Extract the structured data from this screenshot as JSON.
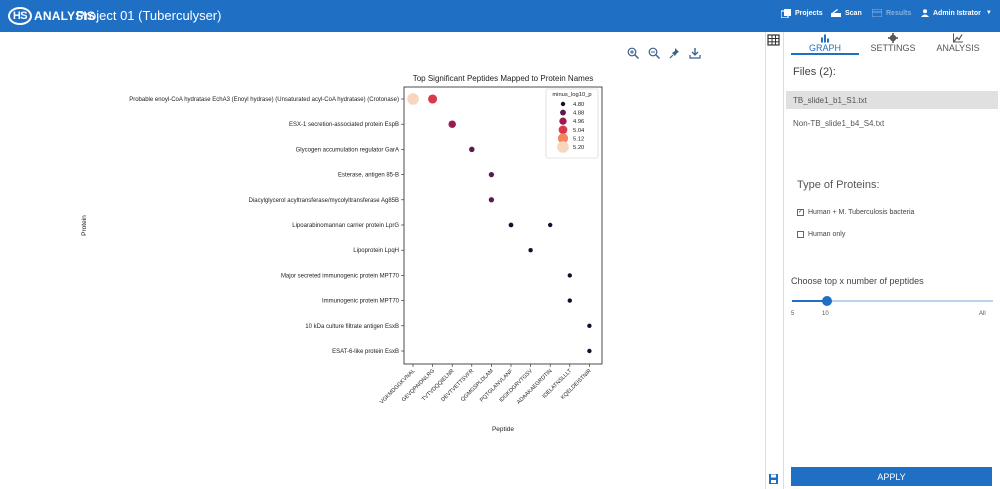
{
  "header": {
    "logo_hs": "HS",
    "logo_text": "ANALYSIS",
    "project_title": "Project 01 (Tuberculyser)",
    "nav": [
      {
        "label": "Projects",
        "icon": "projects-icon"
      },
      {
        "label": "Scan",
        "icon": "scan-icon"
      },
      {
        "label": "Results",
        "icon": "results-icon"
      },
      {
        "label": "Admin Istrator",
        "icon": "user-icon"
      }
    ],
    "accent_color": "#1f6fc4"
  },
  "right_panel": {
    "tabs": [
      {
        "label": "GRAPH",
        "icon": "bar-chart-icon",
        "active": true
      },
      {
        "label": "SETTINGS",
        "icon": "gear-icon",
        "active": false
      },
      {
        "label": "ANALYSIS",
        "icon": "line-chart-icon",
        "active": false
      }
    ],
    "files_title": "Files (2):",
    "files": [
      {
        "name": "TB_slide1_b1_S1.txt",
        "selected": true
      },
      {
        "name": "Non-TB_slide1_b4_S4.txt",
        "selected": false
      }
    ],
    "type_title": "Type of Proteins:",
    "protein_types": [
      {
        "label": "Human + M. Tuberculosis bacteria",
        "checked": true
      },
      {
        "label": "Human only",
        "checked": false
      }
    ],
    "slider": {
      "label": "Choose top x number of peptides",
      "min_label": "5",
      "value_label": "10",
      "max_label": "All"
    },
    "apply_label": "APPLY"
  },
  "chart_data": {
    "type": "scatter",
    "title": "Top Significant Peptides Mapped to Protein Names",
    "xlabel": "Peptide",
    "ylabel": "Protein",
    "x_categories": [
      "VGKMDGGKVNAL",
      "GEVQPAIDNLRG",
      "TVTVDQQIELNR",
      "DEVTVETTSVFR",
      "QGMGSPLDLAM",
      "PQTGLANVLANF",
      "IDGKDGRVTGSV",
      "ADAAKAEGRDTIN",
      "IDELATNSLLLT",
      "KQELDEISTNIR"
    ],
    "y_categories": [
      "Probable enoyl-CoA hydratase EchA3 (Enoyl hydrase) (Unsaturated acyl-CoA hydratase) (Crotonase)",
      "ESX-1 secretion-associated protein EspB",
      "Glycogen accumulation regulator GarA",
      "Esterase, antigen 85-B",
      "Diacylglycerol acyltransferase/mycolyltransferase Ag85B",
      "Lipoarabinomannan carrier protein LprG",
      "Lipoprotein LpqH",
      "Major secreted immunogenic protein MPT70",
      "Immunogenic protein MPT70",
      "10 kDa culture filtrate antigen EsxB",
      "ESAT-6-like protein EsxB"
    ],
    "points": [
      {
        "x": "VGKMDGGKVNAL",
        "y": "Probable enoyl-CoA hydratase EchA3 (Enoyl hydrase) (Unsaturated acyl-CoA hydratase) (Crotonase)",
        "minus_log10_p": 5.2
      },
      {
        "x": "GEVQPAIDNLRG",
        "y": "Probable enoyl-CoA hydratase EchA3 (Enoyl hydrase) (Unsaturated acyl-CoA hydratase) (Crotonase)",
        "minus_log10_p": 5.06
      },
      {
        "x": "TVTVDQQIELNR",
        "y": "ESX-1 secretion-associated protein EspB",
        "minus_log10_p": 4.97
      },
      {
        "x": "DEVTVETTSVFR",
        "y": "Glycogen accumulation regulator GarA",
        "minus_log10_p": 4.86
      },
      {
        "x": "QGMGSPLDLAM",
        "y": "Esterase, antigen 85-B",
        "minus_log10_p": 4.85
      },
      {
        "x": "QGMGSPLDLAM",
        "y": "Diacylglycerol acyltransferase/mycolyltransferase Ag85B",
        "minus_log10_p": 4.85
      },
      {
        "x": "PQTGLANVLANF",
        "y": "Lipoarabinomannan carrier protein LprG",
        "minus_log10_p": 4.82
      },
      {
        "x": "ADAAKAEGRDTIN",
        "y": "Lipoarabinomannan carrier protein LprG",
        "minus_log10_p": 4.8
      },
      {
        "x": "IDGKDGRVTGSV",
        "y": "Lipoprotein LpqH",
        "minus_log10_p": 4.8
      },
      {
        "x": "IDELATNSLLLT",
        "y": "Major secreted immunogenic protein MPT70",
        "minus_log10_p": 4.8
      },
      {
        "x": "IDELATNSLLLT",
        "y": "Immunogenic protein MPT70",
        "minus_log10_p": 4.8
      },
      {
        "x": "KQELDEISTNIR",
        "y": "10 kDa culture filtrate antigen EsxB",
        "minus_log10_p": 4.79
      },
      {
        "x": "KQELDEISTNIR",
        "y": "ESAT-6-like protein EsxB",
        "minus_log10_p": 4.79
      }
    ],
    "legend": {
      "title": "minus_log10_p",
      "entries": [
        {
          "label": "4.80",
          "value": 4.8,
          "color": "#1b0c2e"
        },
        {
          "label": "4.88",
          "value": 4.88,
          "color": "#5a1a4e"
        },
        {
          "label": "4.96",
          "value": 4.96,
          "color": "#9b1b50"
        },
        {
          "label": "5.04",
          "value": 5.04,
          "color": "#d93a4b"
        },
        {
          "label": "5.12",
          "value": 5.12,
          "color": "#f4855f"
        },
        {
          "label": "5.20",
          "value": 5.2,
          "color": "#f8d5bd"
        }
      ],
      "placement": "top-right"
    },
    "grid": false
  },
  "plot_toolbar": [
    {
      "icon": "zoom-in-icon"
    },
    {
      "icon": "zoom-out-icon"
    },
    {
      "icon": "pin-icon"
    },
    {
      "icon": "download-icon"
    }
  ]
}
